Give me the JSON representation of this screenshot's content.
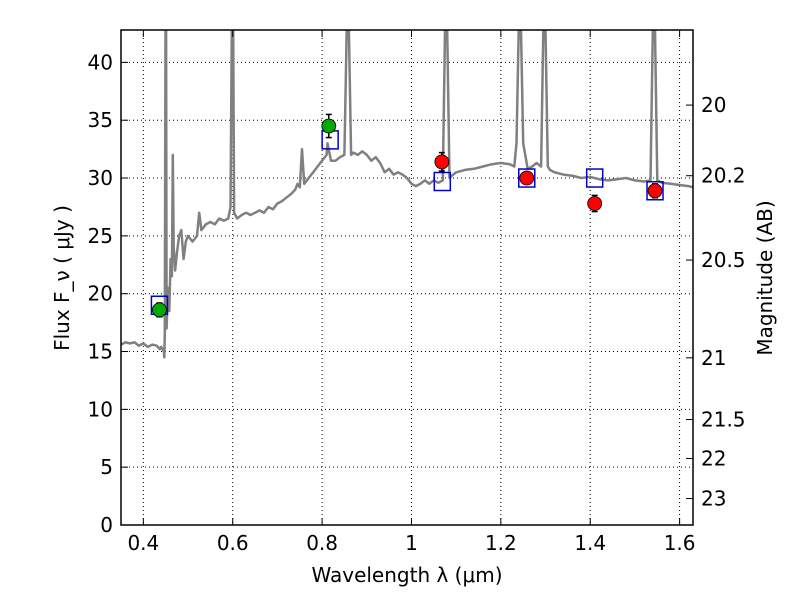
{
  "chart_data": {
    "type": "scatter",
    "xlabel": "Wavelength  λ (μm)",
    "ylabel": "Flux  F_ν  ( μJy )",
    "ylabel_right": "Magnitude (AB)",
    "xlim": [
      0.35,
      1.63
    ],
    "ylim": [
      0,
      42.8
    ],
    "grid": true,
    "x_ticks": [
      {
        "value": 0.4,
        "label": "0.4"
      },
      {
        "value": 0.6,
        "label": "0.6"
      },
      {
        "value": 0.8,
        "label": "0.8"
      },
      {
        "value": 1.0,
        "label": "1"
      },
      {
        "value": 1.2,
        "label": "1.2"
      },
      {
        "value": 1.4,
        "label": "1.4"
      },
      {
        "value": 1.6,
        "label": "1.6"
      }
    ],
    "y_ticks": [
      {
        "value": 0,
        "label": "0"
      },
      {
        "value": 5,
        "label": "5"
      },
      {
        "value": 10,
        "label": "10"
      },
      {
        "value": 15,
        "label": "15"
      },
      {
        "value": 20,
        "label": "20"
      },
      {
        "value": 25,
        "label": "25"
      },
      {
        "value": 30,
        "label": "30"
      },
      {
        "value": 35,
        "label": "35"
      },
      {
        "value": 40,
        "label": "40"
      }
    ],
    "right_ticks": [
      {
        "mag": 20,
        "label": "20"
      },
      {
        "mag": 20.2,
        "label": "20.2"
      },
      {
        "mag": 20.5,
        "label": "20.5"
      },
      {
        "mag": 21,
        "label": "21"
      },
      {
        "mag": 21.5,
        "label": "21.5"
      },
      {
        "mag": 22,
        "label": "22"
      },
      {
        "mag": 23,
        "label": "23"
      }
    ],
    "series": [
      {
        "kind": "spectrum",
        "color": "#808080",
        "points": [
          [
            0.35,
            15.6
          ],
          [
            0.36,
            15.8
          ],
          [
            0.37,
            15.7
          ],
          [
            0.38,
            15.8
          ],
          [
            0.39,
            15.5
          ],
          [
            0.4,
            15.7
          ],
          [
            0.41,
            15.4
          ],
          [
            0.42,
            15.6
          ],
          [
            0.43,
            15.5
          ],
          [
            0.437,
            15.2
          ],
          [
            0.44,
            15.4
          ],
          [
            0.446,
            15.0
          ],
          [
            0.447,
            14.5
          ],
          [
            0.448,
            16.5
          ],
          [
            0.4495,
            42.8
          ],
          [
            0.451,
            42.8
          ],
          [
            0.452,
            17.0
          ],
          [
            0.455,
            20.5
          ],
          [
            0.458,
            18.5
          ],
          [
            0.461,
            23.0
          ],
          [
            0.464,
            21.5
          ],
          [
            0.466,
            32.0
          ],
          [
            0.468,
            24.0
          ],
          [
            0.471,
            22.0
          ],
          [
            0.475,
            23.5
          ],
          [
            0.48,
            25.0
          ],
          [
            0.485,
            25.5
          ],
          [
            0.49,
            23.0
          ],
          [
            0.495,
            24.5
          ],
          [
            0.5,
            25.0
          ],
          [
            0.51,
            24.5
          ],
          [
            0.52,
            25.0
          ],
          [
            0.525,
            27.0
          ],
          [
            0.53,
            25.5
          ],
          [
            0.54,
            26.0
          ],
          [
            0.55,
            26.2
          ],
          [
            0.56,
            26.0
          ],
          [
            0.57,
            26.5
          ],
          [
            0.58,
            26.3
          ],
          [
            0.59,
            26.5
          ],
          [
            0.595,
            27.5
          ],
          [
            0.598,
            42.8
          ],
          [
            0.601,
            42.8
          ],
          [
            0.603,
            27.0
          ],
          [
            0.61,
            26.5
          ],
          [
            0.62,
            26.8
          ],
          [
            0.63,
            27.0
          ],
          [
            0.64,
            26.8
          ],
          [
            0.65,
            27.0
          ],
          [
            0.66,
            27.2
          ],
          [
            0.67,
            27.0
          ],
          [
            0.68,
            27.5
          ],
          [
            0.69,
            27.3
          ],
          [
            0.7,
            27.8
          ],
          [
            0.71,
            28.0
          ],
          [
            0.72,
            28.3
          ],
          [
            0.73,
            28.6
          ],
          [
            0.74,
            29.0
          ],
          [
            0.745,
            29.5
          ],
          [
            0.75,
            29.2
          ],
          [
            0.755,
            32.5
          ],
          [
            0.76,
            29.5
          ],
          [
            0.77,
            30.0
          ],
          [
            0.78,
            30.5
          ],
          [
            0.79,
            31.0
          ],
          [
            0.8,
            31.5
          ],
          [
            0.81,
            32.0
          ],
          [
            0.812,
            33.0
          ],
          [
            0.82,
            31.5
          ],
          [
            0.83,
            31.5
          ],
          [
            0.84,
            31.8
          ],
          [
            0.85,
            32.0
          ],
          [
            0.855,
            42.8
          ],
          [
            0.86,
            42.8
          ],
          [
            0.865,
            32.0
          ],
          [
            0.87,
            32.2
          ],
          [
            0.88,
            32.0
          ],
          [
            0.89,
            32.3
          ],
          [
            0.9,
            32.0
          ],
          [
            0.91,
            31.5
          ],
          [
            0.92,
            31.8
          ],
          [
            0.93,
            31.3
          ],
          [
            0.94,
            30.5
          ],
          [
            0.95,
            30.8
          ],
          [
            0.96,
            30.3
          ],
          [
            0.97,
            30.5
          ],
          [
            0.98,
            30.3
          ],
          [
            0.99,
            30.0
          ],
          [
            1.0,
            29.5
          ],
          [
            1.01,
            29.3
          ],
          [
            1.02,
            29.5
          ],
          [
            1.03,
            29.8
          ],
          [
            1.04,
            29.5
          ],
          [
            1.05,
            29.8
          ],
          [
            1.06,
            29.6
          ],
          [
            1.07,
            29.8
          ],
          [
            1.075,
            42.8
          ],
          [
            1.08,
            42.8
          ],
          [
            1.085,
            30.0
          ],
          [
            1.09,
            30.2
          ],
          [
            1.1,
            30.5
          ],
          [
            1.12,
            30.7
          ],
          [
            1.14,
            30.8
          ],
          [
            1.16,
            31.0
          ],
          [
            1.18,
            31.2
          ],
          [
            1.2,
            31.3
          ],
          [
            1.22,
            31.2
          ],
          [
            1.23,
            31.0
          ],
          [
            1.235,
            33.0
          ],
          [
            1.24,
            42.8
          ],
          [
            1.245,
            42.8
          ],
          [
            1.25,
            33.0
          ],
          [
            1.26,
            30.8
          ],
          [
            1.27,
            31.0
          ],
          [
            1.28,
            31.3
          ],
          [
            1.29,
            31.0
          ],
          [
            1.295,
            42.8
          ],
          [
            1.3,
            42.8
          ],
          [
            1.305,
            31.0
          ],
          [
            1.31,
            30.7
          ],
          [
            1.32,
            30.5
          ],
          [
            1.34,
            30.3
          ],
          [
            1.36,
            30.2
          ],
          [
            1.38,
            30.0
          ],
          [
            1.4,
            30.1
          ],
          [
            1.42,
            29.9
          ],
          [
            1.44,
            29.8
          ],
          [
            1.46,
            29.9
          ],
          [
            1.48,
            30.0
          ],
          [
            1.5,
            29.8
          ],
          [
            1.52,
            29.7
          ],
          [
            1.535,
            29.8
          ],
          [
            1.54,
            42.8
          ],
          [
            1.545,
            42.8
          ],
          [
            1.55,
            29.8
          ],
          [
            1.56,
            29.6
          ],
          [
            1.58,
            29.5
          ],
          [
            1.6,
            29.4
          ],
          [
            1.62,
            29.3
          ],
          [
            1.63,
            29.2
          ]
        ]
      },
      {
        "kind": "model-boxes",
        "color": "#0000cc",
        "points": [
          [
            0.436,
            19.0
          ],
          [
            0.818,
            33.3
          ],
          [
            1.069,
            29.7
          ],
          [
            1.258,
            30.0
          ],
          [
            1.41,
            30.0
          ],
          [
            1.545,
            28.9
          ]
        ]
      },
      {
        "kind": "green-points",
        "color": "#00aa00",
        "points": [
          {
            "x": 0.436,
            "y": 18.6,
            "err": 0.6
          },
          {
            "x": 0.815,
            "y": 34.5,
            "err": 1.0
          }
        ]
      },
      {
        "kind": "red-points",
        "color": "#ff0000",
        "points": [
          {
            "x": 1.068,
            "y": 31.4,
            "err": 0.8
          },
          {
            "x": 1.258,
            "y": 30.0,
            "err": 0.5
          },
          {
            "x": 1.41,
            "y": 27.8,
            "err": 0.7
          },
          {
            "x": 1.545,
            "y": 28.9,
            "err": 0.6
          }
        ]
      }
    ]
  }
}
